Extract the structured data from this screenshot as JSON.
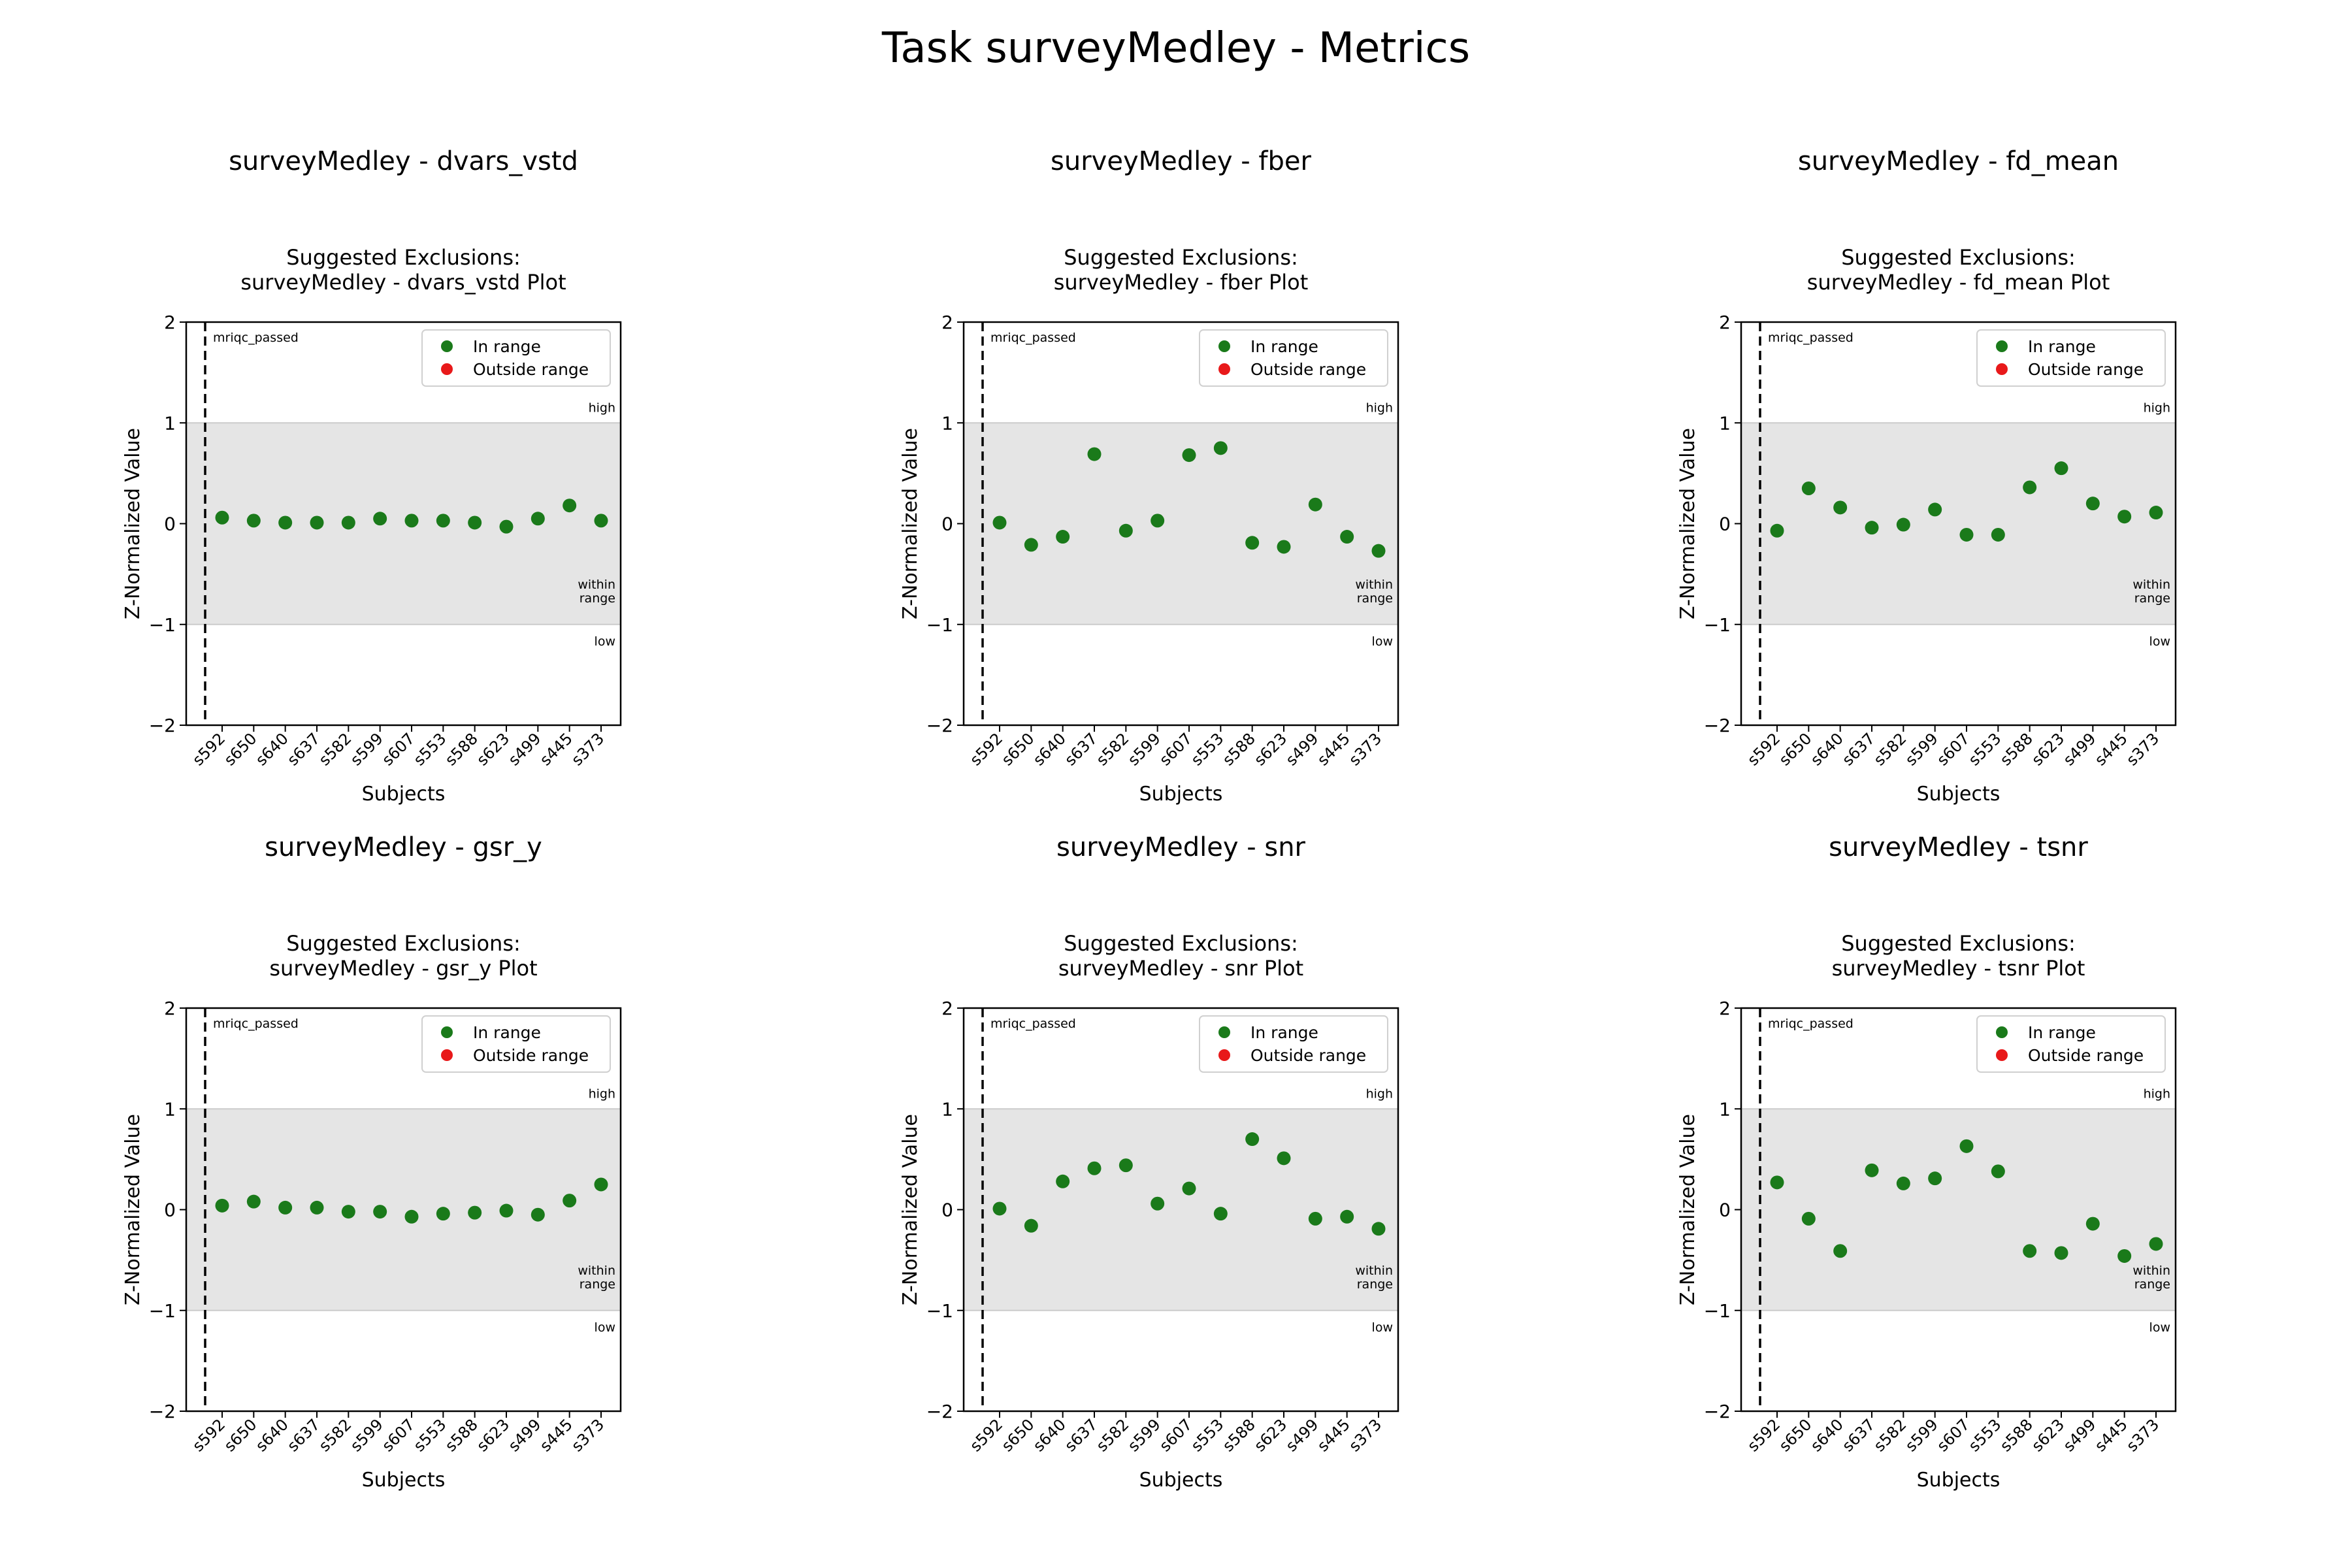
{
  "figure": {
    "title": "Task surveyMedley - Metrics"
  },
  "chart_data": [
    {
      "type": "scatter",
      "heading": "surveyMedley - dvars_vstd",
      "title": "Suggested Exclusions:\nsurveyMedley - dvars_vstd Plot",
      "xlabel": "Subjects",
      "ylabel": "Z-Normalized Value",
      "ylim": [
        -2,
        2
      ],
      "yticks": [
        -2,
        -1,
        0,
        1,
        2
      ],
      "categories": [
        "s592",
        "s650",
        "s640",
        "s637",
        "s582",
        "s599",
        "s607",
        "s553",
        "s588",
        "s623",
        "s499",
        "s445",
        "s373"
      ],
      "values": [
        0.06,
        0.03,
        0.01,
        0.01,
        0.01,
        0.05,
        0.03,
        0.03,
        0.01,
        -0.03,
        0.05,
        0.18,
        0.03
      ],
      "range": [
        -1,
        1
      ],
      "range_labels": {
        "high": "high",
        "within": "within\nrange",
        "low": "low"
      },
      "vline_label": "mriqc_passed",
      "legend": {
        "position": "top-right",
        "entries": [
          {
            "label": "In range",
            "color": "#1a7a1a"
          },
          {
            "label": "Outside range",
            "color": "#e8191a"
          }
        ]
      },
      "grid": false
    },
    {
      "type": "scatter",
      "heading": "surveyMedley - fber",
      "title": "Suggested Exclusions:\nsurveyMedley - fber Plot",
      "xlabel": "Subjects",
      "ylabel": "Z-Normalized Value",
      "ylim": [
        -2,
        2
      ],
      "yticks": [
        -2,
        -1,
        0,
        1,
        2
      ],
      "categories": [
        "s592",
        "s650",
        "s640",
        "s637",
        "s582",
        "s599",
        "s607",
        "s553",
        "s588",
        "s623",
        "s499",
        "s445",
        "s373"
      ],
      "values": [
        0.01,
        -0.21,
        -0.13,
        0.69,
        -0.07,
        0.03,
        0.68,
        0.75,
        -0.19,
        -0.23,
        0.19,
        -0.13,
        -0.27
      ],
      "range": [
        -1,
        1
      ],
      "range_labels": {
        "high": "high",
        "within": "within\nrange",
        "low": "low"
      },
      "vline_label": "mriqc_passed",
      "legend": {
        "position": "top-right",
        "entries": [
          {
            "label": "In range",
            "color": "#1a7a1a"
          },
          {
            "label": "Outside range",
            "color": "#e8191a"
          }
        ]
      },
      "grid": false
    },
    {
      "type": "scatter",
      "heading": "surveyMedley - fd_mean",
      "title": "Suggested Exclusions:\nsurveyMedley - fd_mean Plot",
      "xlabel": "Subjects",
      "ylabel": "Z-Normalized Value",
      "ylim": [
        -2,
        2
      ],
      "yticks": [
        -2,
        -1,
        0,
        1,
        2
      ],
      "categories": [
        "s592",
        "s650",
        "s640",
        "s637",
        "s582",
        "s599",
        "s607",
        "s553",
        "s588",
        "s623",
        "s499",
        "s445",
        "s373"
      ],
      "values": [
        -0.07,
        0.35,
        0.16,
        -0.04,
        -0.01,
        0.14,
        -0.11,
        -0.11,
        0.36,
        0.55,
        0.2,
        0.07,
        0.11
      ],
      "range": [
        -1,
        1
      ],
      "range_labels": {
        "high": "high",
        "within": "within\nrange",
        "low": "low"
      },
      "vline_label": "mriqc_passed",
      "legend": {
        "position": "top-right",
        "entries": [
          {
            "label": "In range",
            "color": "#1a7a1a"
          },
          {
            "label": "Outside range",
            "color": "#e8191a"
          }
        ]
      },
      "grid": false
    },
    {
      "type": "scatter",
      "heading": "surveyMedley - gsr_y",
      "title": "Suggested Exclusions:\nsurveyMedley - gsr_y Plot",
      "xlabel": "Subjects",
      "ylabel": "Z-Normalized Value",
      "ylim": [
        -2,
        2
      ],
      "yticks": [
        -2,
        -1,
        0,
        1,
        2
      ],
      "categories": [
        "s592",
        "s650",
        "s640",
        "s637",
        "s582",
        "s599",
        "s607",
        "s553",
        "s588",
        "s623",
        "s499",
        "s445",
        "s373"
      ],
      "values": [
        0.04,
        0.08,
        0.02,
        0.02,
        -0.02,
        -0.02,
        -0.07,
        -0.04,
        -0.03,
        -0.01,
        -0.05,
        0.09,
        0.25
      ],
      "range": [
        -1,
        1
      ],
      "range_labels": {
        "high": "high",
        "within": "within\nrange",
        "low": "low"
      },
      "vline_label": "mriqc_passed",
      "legend": {
        "position": "top-right",
        "entries": [
          {
            "label": "In range",
            "color": "#1a7a1a"
          },
          {
            "label": "Outside range",
            "color": "#e8191a"
          }
        ]
      },
      "grid": false
    },
    {
      "type": "scatter",
      "heading": "surveyMedley - snr",
      "title": "Suggested Exclusions:\nsurveyMedley - snr Plot",
      "xlabel": "Subjects",
      "ylabel": "Z-Normalized Value",
      "ylim": [
        -2,
        2
      ],
      "yticks": [
        -2,
        -1,
        0,
        1,
        2
      ],
      "categories": [
        "s592",
        "s650",
        "s640",
        "s637",
        "s582",
        "s599",
        "s607",
        "s553",
        "s588",
        "s623",
        "s499",
        "s445",
        "s373"
      ],
      "values": [
        0.01,
        -0.16,
        0.28,
        0.41,
        0.44,
        0.06,
        0.21,
        -0.04,
        0.7,
        0.51,
        -0.09,
        -0.07,
        -0.19
      ],
      "range": [
        -1,
        1
      ],
      "range_labels": {
        "high": "high",
        "within": "within\nrange",
        "low": "low"
      },
      "vline_label": "mriqc_passed",
      "legend": {
        "position": "top-right",
        "entries": [
          {
            "label": "In range",
            "color": "#1a7a1a"
          },
          {
            "label": "Outside range",
            "color": "#e8191a"
          }
        ]
      },
      "grid": false
    },
    {
      "type": "scatter",
      "heading": "surveyMedley - tsnr",
      "title": "Suggested Exclusions:\nsurveyMedley - tsnr Plot",
      "xlabel": "Subjects",
      "ylabel": "Z-Normalized Value",
      "ylim": [
        -2,
        2
      ],
      "yticks": [
        -2,
        -1,
        0,
        1,
        2
      ],
      "categories": [
        "s592",
        "s650",
        "s640",
        "s637",
        "s582",
        "s599",
        "s607",
        "s553",
        "s588",
        "s623",
        "s499",
        "s445",
        "s373"
      ],
      "values": [
        0.27,
        -0.09,
        -0.41,
        0.39,
        0.26,
        0.31,
        0.63,
        0.38,
        -0.41,
        -0.43,
        -0.14,
        -0.46,
        -0.34
      ],
      "range": [
        -1,
        1
      ],
      "range_labels": {
        "high": "high",
        "within": "within\nrange",
        "low": "low"
      },
      "vline_label": "mriqc_passed",
      "legend": {
        "position": "top-right",
        "entries": [
          {
            "label": "In range",
            "color": "#1a7a1a"
          },
          {
            "label": "Outside range",
            "color": "#e8191a"
          }
        ]
      },
      "grid": false
    }
  ]
}
